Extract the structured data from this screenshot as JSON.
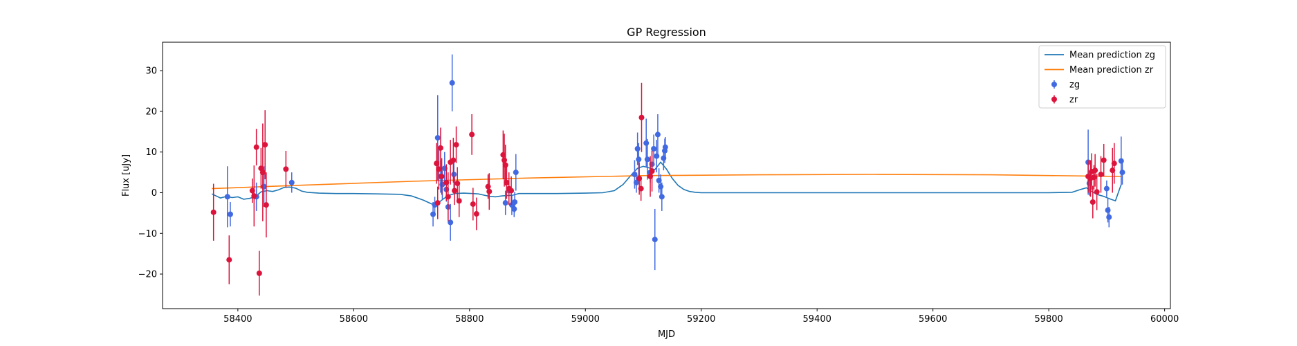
{
  "chart_data": {
    "type": "scatter",
    "title": "GP Regression",
    "xlabel": "MJD",
    "ylabel": "Flux [uJy]",
    "xlim": [
      58270,
      60010
    ],
    "ylim": [
      -28.5,
      37
    ],
    "xticks": [
      58400,
      58600,
      58800,
      59000,
      59200,
      59400,
      59600,
      59800,
      60000
    ],
    "yticks": [
      -20,
      -10,
      0,
      10,
      20,
      30
    ],
    "grid": false,
    "legend_position": "top-right",
    "lines": [
      {
        "name": "Mean prediction zg",
        "color": "#1f77b4",
        "x": [
          58355,
          58370,
          58380,
          58390,
          58400,
          58410,
          58420,
          58430,
          58440,
          58450,
          58460,
          58470,
          58480,
          58490,
          58500,
          58510,
          58520,
          58540,
          58570,
          58600,
          58640,
          58680,
          58700,
          58720,
          58735,
          58745,
          58755,
          58765,
          58775,
          58790,
          58805,
          58815,
          58825,
          58835,
          58845,
          58855,
          58865,
          58875,
          58885,
          58900,
          58950,
          59000,
          59030,
          59050,
          59065,
          59080,
          59090,
          59100,
          59110,
          59120,
          59130,
          59140,
          59150,
          59160,
          59170,
          59180,
          59190,
          59200,
          59300,
          59400,
          59500,
          59600,
          59700,
          59800,
          59840,
          59855,
          59865,
          59875,
          59885,
          59895,
          59905,
          59915,
          59925
        ],
        "y": [
          -0.3,
          -1.3,
          -0.9,
          -1.2,
          -1.0,
          -1.6,
          -1.4,
          -1.0,
          0.2,
          0.5,
          0.3,
          0.7,
          1.3,
          1.4,
          1.1,
          0.4,
          0.1,
          -0.1,
          -0.2,
          -0.2,
          -0.3,
          -0.4,
          -0.8,
          -1.8,
          -2.8,
          -2.6,
          -1.5,
          -0.6,
          -0.2,
          -0.1,
          -0.2,
          -0.3,
          -0.6,
          -0.9,
          -1.0,
          -0.8,
          -0.7,
          -0.6,
          -0.2,
          -0.2,
          -0.2,
          -0.1,
          0.0,
          0.5,
          2.0,
          4.5,
          6.0,
          6.5,
          6.1,
          5.7,
          7.5,
          5.8,
          3.5,
          1.8,
          0.8,
          0.3,
          0.1,
          0.0,
          0.0,
          0.0,
          0.0,
          0.0,
          0.0,
          0.0,
          0.1,
          0.8,
          1.2,
          0.2,
          -0.5,
          -0.9,
          -1.5,
          -2.0,
          2.0
        ]
      },
      {
        "name": "Mean prediction zr",
        "color": "#ff7f0e",
        "x": [
          58355,
          58500,
          58700,
          58900,
          59100,
          59300,
          59500,
          59700,
          59870,
          59925
        ],
        "y": [
          1.0,
          1.8,
          2.8,
          3.6,
          4.2,
          4.4,
          4.5,
          4.4,
          4.1,
          4.0
        ]
      }
    ],
    "series": [
      {
        "name": "zg",
        "color": "#4169e1",
        "points": [
          [
            58382,
            -1.0,
            7.5
          ],
          [
            58387,
            -5.3,
            3.0
          ],
          [
            58432,
            -1.0,
            3.5
          ],
          [
            58445,
            1.5,
            5.0
          ],
          [
            58493,
            2.5,
            2.5
          ],
          [
            58737,
            -5.3,
            3.0
          ],
          [
            58740,
            -3.0,
            2.0
          ],
          [
            58745,
            13.5,
            10.5
          ],
          [
            58750,
            4.0,
            4.0
          ],
          [
            58753,
            2.0,
            3.5
          ],
          [
            58757,
            6.0,
            4.0
          ],
          [
            58760,
            0.8,
            3.0
          ],
          [
            58763,
            -3.5,
            3.0
          ],
          [
            58767,
            -7.3,
            4.5
          ],
          [
            58770,
            27.0,
            7.0
          ],
          [
            58773,
            4.5,
            3.5
          ],
          [
            58862,
            -2.5,
            3.0
          ],
          [
            58868,
            0.5,
            2.5
          ],
          [
            58873,
            -3.0,
            2.5
          ],
          [
            58877,
            -4.0,
            2.0
          ],
          [
            58880,
            5.0,
            4.5
          ],
          [
            58878,
            -2.3,
            2.5
          ],
          [
            59085,
            4.5,
            3.5
          ],
          [
            59088,
            2.5,
            2.5
          ],
          [
            59090,
            10.8,
            4.0
          ],
          [
            59092,
            8.2,
            4.0
          ],
          [
            59105,
            12.2,
            6.0
          ],
          [
            59107,
            8.2,
            5.0
          ],
          [
            59112,
            5.0,
            2.5
          ],
          [
            59115,
            7.0,
            3.5
          ],
          [
            59118,
            10.8,
            3.5
          ],
          [
            59120,
            -11.5,
            7.5
          ],
          [
            59123,
            9.0,
            4.0
          ],
          [
            59125,
            14.3,
            5.0
          ],
          [
            59127,
            3.0,
            3.0
          ],
          [
            59130,
            1.5,
            3.0
          ],
          [
            59132,
            -1.0,
            3.5
          ],
          [
            59135,
            8.5,
            3.0
          ],
          [
            59137,
            10.3,
            3.0
          ],
          [
            59138,
            11.2,
            2.5
          ],
          [
            59868,
            7.5,
            8.0
          ],
          [
            59870,
            2.3,
            3.0
          ],
          [
            59900,
            1.0,
            2.0
          ],
          [
            59902,
            -4.3,
            3.0
          ],
          [
            59904,
            -6.0,
            2.5
          ],
          [
            59925,
            7.8,
            6.0
          ],
          [
            59927,
            5.0,
            3.0
          ]
        ]
      },
      {
        "name": "zr",
        "color": "#dc143c",
        "points": [
          [
            58358,
            -4.8,
            7.0
          ],
          [
            58385,
            -16.5,
            6.0
          ],
          [
            58425,
            0.5,
            3.0
          ],
          [
            58428,
            -0.8,
            7.5
          ],
          [
            58432,
            11.2,
            4.5
          ],
          [
            58437,
            -19.8,
            5.5
          ],
          [
            58440,
            6.0,
            5.0
          ],
          [
            58443,
            5.0,
            12.0
          ],
          [
            58447,
            11.8,
            8.5
          ],
          [
            58449,
            -3.0,
            8.0
          ],
          [
            58483,
            5.8,
            4.5
          ],
          [
            58743,
            7.2,
            5.0
          ],
          [
            58745,
            -2.5,
            4.0
          ],
          [
            58747,
            5.8,
            5.0
          ],
          [
            58750,
            11.0,
            5.0
          ],
          [
            58752,
            4.0,
            4.5
          ],
          [
            58760,
            2.5,
            4.5
          ],
          [
            58763,
            -1.0,
            6.0
          ],
          [
            58767,
            7.5,
            5.5
          ],
          [
            58772,
            8.0,
            5.5
          ],
          [
            58774,
            0.5,
            3.5
          ],
          [
            58777,
            11.8,
            4.5
          ],
          [
            58779,
            2.3,
            4.0
          ],
          [
            58782,
            -2.0,
            4.0
          ],
          [
            58804,
            14.3,
            5.0
          ],
          [
            58806,
            -2.8,
            4.0
          ],
          [
            58812,
            -5.2,
            4.0
          ],
          [
            58832,
            1.5,
            3.0
          ],
          [
            58834,
            0.3,
            4.5
          ],
          [
            58858,
            9.3,
            6.0
          ],
          [
            58860,
            8.0,
            6.5
          ],
          [
            58862,
            6.8,
            5.0
          ],
          [
            58864,
            2.5,
            4.0
          ],
          [
            58868,
            1.0,
            4.0
          ],
          [
            58872,
            0.5,
            3.5
          ],
          [
            59093,
            3.5,
            4.0
          ],
          [
            59096,
            1.0,
            3.0
          ],
          [
            59097,
            18.5,
            8.5
          ],
          [
            59112,
            4.0,
            5.0
          ],
          [
            59115,
            5.3,
            5.0
          ],
          [
            59868,
            4.0,
            4.0
          ],
          [
            59872,
            3.5,
            4.5
          ],
          [
            59874,
            5.2,
            4.5
          ],
          [
            59876,
            -2.3,
            4.0
          ],
          [
            59878,
            3.8,
            3.0
          ],
          [
            59880,
            5.5,
            4.0
          ],
          [
            59883,
            0.2,
            4.5
          ],
          [
            59890,
            4.5,
            4.5
          ],
          [
            59895,
            8.0,
            4.0
          ],
          [
            59910,
            5.5,
            5.5
          ],
          [
            59913,
            7.2,
            5.0
          ]
        ]
      }
    ],
    "legend": [
      "Mean prediction zg",
      "Mean prediction zr",
      "zg",
      "zr"
    ]
  }
}
